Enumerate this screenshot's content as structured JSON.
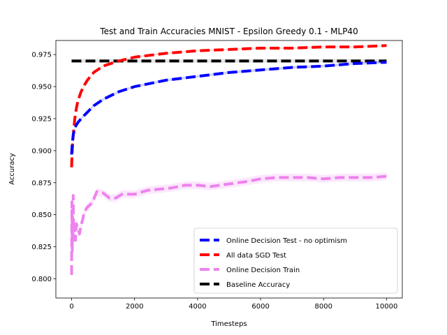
{
  "chart_data": {
    "type": "line",
    "title": "Test and Train Accuracies MNIST - Epsilon Greedy 0.1 - MLP40",
    "xlabel": "Timesteps",
    "ylabel": "Accuracy",
    "xlim": [
      -500,
      10500
    ],
    "ylim": [
      0.785,
      0.986
    ],
    "xticks": [
      0,
      2000,
      4000,
      6000,
      8000,
      10000
    ],
    "yticks": [
      0.8,
      0.825,
      0.85,
      0.875,
      0.9,
      0.925,
      0.95,
      0.975
    ],
    "xtick_labels": [
      "0",
      "2000",
      "4000",
      "6000",
      "8000",
      "10000"
    ],
    "ytick_labels": [
      "0.800",
      "0.825",
      "0.850",
      "0.875",
      "0.900",
      "0.925",
      "0.950",
      "0.975"
    ],
    "grid": false,
    "legend_position": "lower-right",
    "series": [
      {
        "name": "Online Decision Test - no optimism",
        "color": "#0000ff",
        "band_color": "#0000ff",
        "band": 0.001,
        "x": [
          0,
          20,
          50,
          100,
          200,
          300,
          500,
          700,
          1000,
          1500,
          2000,
          3000,
          4000,
          5000,
          6000,
          7000,
          8000,
          9000,
          10000
        ],
        "y": [
          0.897,
          0.905,
          0.912,
          0.918,
          0.922,
          0.925,
          0.93,
          0.935,
          0.94,
          0.946,
          0.95,
          0.955,
          0.958,
          0.961,
          0.963,
          0.965,
          0.966,
          0.968,
          0.969
        ]
      },
      {
        "name": "All data SGD Test",
        "color": "#ff0000",
        "band_color": "#ff0000",
        "band": 0.0005,
        "x": [
          0,
          20,
          50,
          100,
          150,
          200,
          300,
          400,
          500,
          700,
          1000,
          1500,
          2000,
          3000,
          4000,
          5000,
          6000,
          7000,
          8000,
          9000,
          10000
        ],
        "y": [
          0.887,
          0.9,
          0.912,
          0.925,
          0.933,
          0.939,
          0.946,
          0.951,
          0.955,
          0.961,
          0.966,
          0.97,
          0.973,
          0.976,
          0.978,
          0.979,
          0.98,
          0.98,
          0.981,
          0.981,
          0.982
        ]
      },
      {
        "name": "Online Decision Train",
        "color": "#ee82ee",
        "band_color": "#ee82ee",
        "band": 0.003,
        "x": [
          0,
          10,
          20,
          30,
          40,
          50,
          60,
          80,
          100,
          120,
          150,
          200,
          250,
          300,
          350,
          400,
          500,
          600,
          700,
          800,
          900,
          1000,
          1200,
          1400,
          1600,
          2000,
          2400,
          2800,
          3200,
          3600,
          4000,
          4400,
          5000,
          5600,
          6000,
          6500,
          7000,
          7500,
          8000,
          8500,
          9000,
          9500,
          10000
        ],
        "y": [
          0.803,
          0.86,
          0.82,
          0.848,
          0.83,
          0.865,
          0.838,
          0.842,
          0.836,
          0.83,
          0.843,
          0.839,
          0.835,
          0.842,
          0.846,
          0.852,
          0.856,
          0.858,
          0.862,
          0.868,
          0.867,
          0.867,
          0.863,
          0.863,
          0.866,
          0.866,
          0.869,
          0.87,
          0.871,
          0.873,
          0.873,
          0.872,
          0.874,
          0.876,
          0.878,
          0.879,
          0.879,
          0.879,
          0.878,
          0.879,
          0.879,
          0.879,
          0.88
        ]
      },
      {
        "name": "Baseline Accuracy",
        "color": "#000000",
        "band_color": "#808080",
        "band": 0.0015,
        "x": [
          0,
          10000
        ],
        "y": [
          0.97,
          0.97
        ]
      }
    ]
  }
}
